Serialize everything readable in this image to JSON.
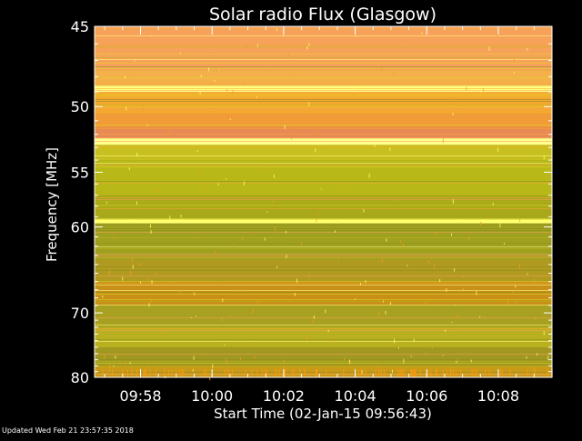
{
  "chart_data": {
    "type": "heatmap",
    "title": "Solar radio Flux (Glasgow)",
    "xlabel": "Start Time (02-Jan-15 09:56:43)",
    "ylabel": "Frequency [MHz]",
    "x_ticks": [
      "09:58",
      "10:00",
      "10:02",
      "10:04",
      "10:06",
      "10:08"
    ],
    "x_range": [
      "09:56:43",
      "10:09:30"
    ],
    "y_ticks": [
      45,
      50,
      55,
      60,
      70,
      80
    ],
    "y_range": [
      45,
      80
    ],
    "y_scale": "reciprocal",
    "bands": [
      {
        "from": 45.0,
        "to": 47.6,
        "color": "#f7a25a"
      },
      {
        "from": 47.6,
        "to": 48.6,
        "color": "#f4b04a"
      },
      {
        "from": 48.6,
        "to": 49.0,
        "color": "#ffff80"
      },
      {
        "from": 49.0,
        "to": 50.5,
        "color": "#f5a830"
      },
      {
        "from": 50.5,
        "to": 51.5,
        "color": "#f09a3a"
      },
      {
        "from": 51.5,
        "to": 52.3,
        "color": "#e88a55"
      },
      {
        "from": 52.3,
        "to": 52.8,
        "color": "#ffff90"
      },
      {
        "from": 52.8,
        "to": 54.0,
        "color": "#c8c020"
      },
      {
        "from": 54.0,
        "to": 57.0,
        "color": "#b8b818"
      },
      {
        "from": 57.0,
        "to": 59.2,
        "color": "#a8a81a"
      },
      {
        "from": 59.2,
        "to": 59.6,
        "color": "#ffff70"
      },
      {
        "from": 59.6,
        "to": 63.5,
        "color": "#a0a020"
      },
      {
        "from": 63.5,
        "to": 66.0,
        "color": "#b09a20"
      },
      {
        "from": 66.0,
        "to": 69.0,
        "color": "#c89018"
      },
      {
        "from": 69.0,
        "to": 72.0,
        "color": "#a8a020"
      },
      {
        "from": 72.0,
        "to": 75.0,
        "color": "#b8b020"
      },
      {
        "from": 75.0,
        "to": 78.0,
        "color": "#a09820"
      },
      {
        "from": 78.0,
        "to": 80.0,
        "color": "#c89a18"
      }
    ],
    "colorscale": [
      "#8c8c1e",
      "#b8b818",
      "#e0d820",
      "#f5a830",
      "#f7a25a",
      "#ffff80"
    ],
    "grid": false
  },
  "footer": {
    "updated": "Updated Wed Feb 21 23:57:35 2018"
  }
}
